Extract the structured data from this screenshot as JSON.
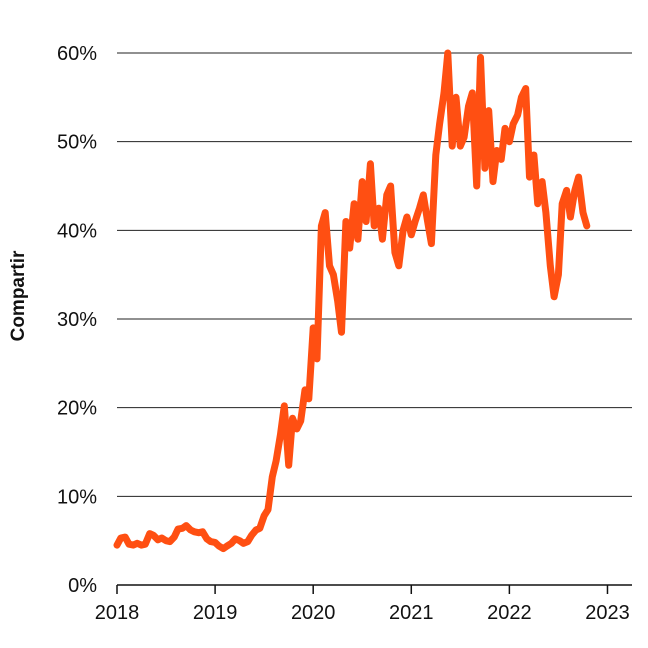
{
  "chart_data": {
    "type": "line",
    "title": "",
    "xlabel": "",
    "ylabel": "Compartir",
    "x_ticks": [
      "2018",
      "2019",
      "2020",
      "2021",
      "2022",
      "2023"
    ],
    "y_ticks": [
      "0%",
      "10%",
      "20%",
      "30%",
      "40%",
      "50%",
      "60%"
    ],
    "xlim": [
      "2018-01",
      "2023-04"
    ],
    "ylim": [
      0,
      60
    ],
    "grid": "horizontal",
    "legend": "none",
    "series": [
      {
        "color": "#FF4F12",
        "points": [
          [
            "2018-01-01",
            4.5
          ],
          [
            "2018-01-15",
            5.3
          ],
          [
            "2018-02-01",
            5.4
          ],
          [
            "2018-02-15",
            4.6
          ],
          [
            "2018-03-01",
            4.5
          ],
          [
            "2018-03-15",
            4.7
          ],
          [
            "2018-04-01",
            4.5
          ],
          [
            "2018-04-15",
            4.6
          ],
          [
            "2018-05-01",
            5.8
          ],
          [
            "2018-05-15",
            5.6
          ],
          [
            "2018-06-01",
            5.1
          ],
          [
            "2018-06-15",
            5.3
          ],
          [
            "2018-07-01",
            5.0
          ],
          [
            "2018-07-15",
            4.9
          ],
          [
            "2018-08-01",
            5.4
          ],
          [
            "2018-08-15",
            6.3
          ],
          [
            "2018-09-01",
            6.4
          ],
          [
            "2018-09-15",
            6.7
          ],
          [
            "2018-10-01",
            6.2
          ],
          [
            "2018-10-15",
            6.0
          ],
          [
            "2018-11-01",
            5.9
          ],
          [
            "2018-11-15",
            6.0
          ],
          [
            "2018-12-01",
            5.2
          ],
          [
            "2018-12-15",
            4.9
          ],
          [
            "2019-01-01",
            4.8
          ],
          [
            "2019-01-15",
            4.4
          ],
          [
            "2019-02-01",
            4.1
          ],
          [
            "2019-02-15",
            4.4
          ],
          [
            "2019-03-01",
            4.7
          ],
          [
            "2019-03-15",
            5.2
          ],
          [
            "2019-04-01",
            5.0
          ],
          [
            "2019-04-15",
            4.7
          ],
          [
            "2019-05-01",
            4.9
          ],
          [
            "2019-05-15",
            5.6
          ],
          [
            "2019-06-01",
            6.2
          ],
          [
            "2019-06-15",
            6.4
          ],
          [
            "2019-07-01",
            7.8
          ],
          [
            "2019-07-15",
            8.5
          ],
          [
            "2019-08-01",
            12.2
          ],
          [
            "2019-08-15",
            14.0
          ],
          [
            "2019-09-01",
            17.0
          ],
          [
            "2019-09-15",
            20.2
          ],
          [
            "2019-10-01",
            13.5
          ],
          [
            "2019-10-15",
            18.8
          ],
          [
            "2019-11-01",
            17.6
          ],
          [
            "2019-11-15",
            18.5
          ],
          [
            "2019-12-01",
            22.0
          ],
          [
            "2019-12-15",
            21.0
          ],
          [
            "2020-01-01",
            29.0
          ],
          [
            "2020-01-15",
            25.5
          ],
          [
            "2020-02-01",
            40.5
          ],
          [
            "2020-02-15",
            42.0
          ],
          [
            "2020-03-01",
            36.0
          ],
          [
            "2020-03-15",
            35.0
          ],
          [
            "2020-04-01",
            32.0
          ],
          [
            "2020-04-15",
            28.5
          ],
          [
            "2020-05-01",
            41.0
          ],
          [
            "2020-05-15",
            38.0
          ],
          [
            "2020-06-01",
            43.0
          ],
          [
            "2020-06-15",
            39.0
          ],
          [
            "2020-07-01",
            45.5
          ],
          [
            "2020-07-15",
            41.0
          ],
          [
            "2020-08-01",
            47.5
          ],
          [
            "2020-08-15",
            40.5
          ],
          [
            "2020-09-01",
            42.5
          ],
          [
            "2020-09-15",
            39.0
          ],
          [
            "2020-10-01",
            44.0
          ],
          [
            "2020-10-15",
            45.0
          ],
          [
            "2020-11-01",
            37.5
          ],
          [
            "2020-11-15",
            36.0
          ],
          [
            "2020-12-01",
            40.0
          ],
          [
            "2020-12-15",
            41.5
          ],
          [
            "2021-01-01",
            39.5
          ],
          [
            "2021-01-15",
            41.0
          ],
          [
            "2021-02-01",
            42.5
          ],
          [
            "2021-02-15",
            44.0
          ],
          [
            "2021-03-01",
            41.0
          ],
          [
            "2021-03-15",
            38.5
          ],
          [
            "2021-04-01",
            48.5
          ],
          [
            "2021-04-15",
            52.0
          ],
          [
            "2021-05-01",
            55.5
          ],
          [
            "2021-05-15",
            60.0
          ],
          [
            "2021-06-01",
            49.5
          ],
          [
            "2021-06-15",
            55.0
          ],
          [
            "2021-07-01",
            49.5
          ],
          [
            "2021-07-15",
            50.5
          ],
          [
            "2021-08-01",
            54.0
          ],
          [
            "2021-08-15",
            55.5
          ],
          [
            "2021-09-01",
            45.0
          ],
          [
            "2021-09-15",
            59.5
          ],
          [
            "2021-10-01",
            47.0
          ],
          [
            "2021-10-15",
            53.5
          ],
          [
            "2021-11-01",
            45.5
          ],
          [
            "2021-11-15",
            49.0
          ],
          [
            "2021-12-01",
            48.0
          ],
          [
            "2021-12-15",
            51.5
          ],
          [
            "2022-01-01",
            50.0
          ],
          [
            "2022-01-15",
            52.0
          ],
          [
            "2022-02-01",
            53.0
          ],
          [
            "2022-02-15",
            55.0
          ],
          [
            "2022-03-01",
            56.0
          ],
          [
            "2022-03-15",
            46.0
          ],
          [
            "2022-04-01",
            48.5
          ],
          [
            "2022-04-15",
            43.0
          ],
          [
            "2022-05-01",
            45.5
          ],
          [
            "2022-05-15",
            42.0
          ],
          [
            "2022-06-01",
            36.0
          ],
          [
            "2022-06-15",
            32.5
          ],
          [
            "2022-07-01",
            35.0
          ],
          [
            "2022-07-15",
            43.0
          ],
          [
            "2022-08-01",
            44.5
          ],
          [
            "2022-08-15",
            41.5
          ],
          [
            "2022-09-01",
            44.5
          ],
          [
            "2022-09-15",
            46.0
          ],
          [
            "2022-10-01",
            42.0
          ],
          [
            "2022-10-15",
            40.5
          ]
        ]
      }
    ]
  }
}
